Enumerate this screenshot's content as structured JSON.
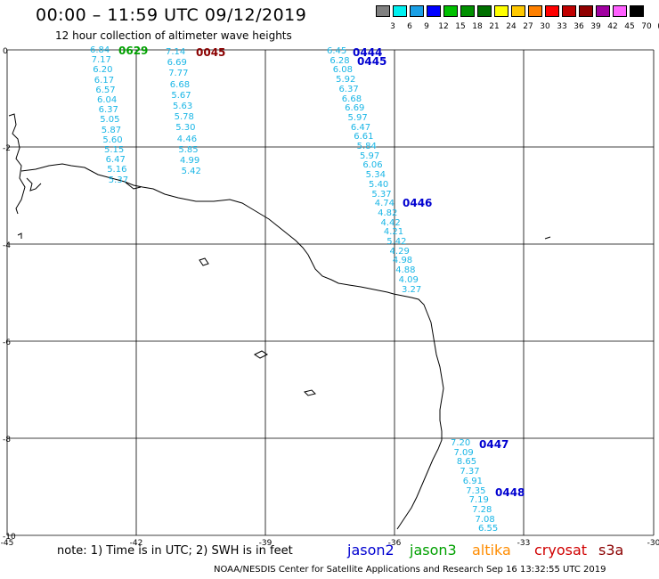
{
  "title": "00:00 – 11:59 UTC 09/12/2019",
  "subtitle": "12 hour collection of altimeter wave heights",
  "legend": {
    "labels": [
      "3",
      "6",
      "9",
      "12",
      "15",
      "18",
      "21",
      "24",
      "27",
      "30",
      "33",
      "36",
      "39",
      "42",
      "45",
      "70",
      "(ft)"
    ],
    "colors": [
      "#808080",
      "#00f0f0",
      "#1aa0e6",
      "#0000ff",
      "#00c000",
      "#009000",
      "#007000",
      "#ffff00",
      "#ffc800",
      "#ff8000",
      "#ff0000",
      "#c00000",
      "#900000",
      "#a000a0",
      "#ff60ff",
      "#000000"
    ]
  },
  "axes": {
    "x_ticks": [
      "-45",
      "-42",
      "-39",
      "-36",
      "-33",
      "-30"
    ],
    "y_ticks": [
      "0",
      "-2",
      "-4",
      "-6",
      "-8",
      "-10"
    ]
  },
  "passes": [
    {
      "id": "0629",
      "color": "#00a000"
    },
    {
      "id": "0045",
      "color": "#8b0000"
    },
    {
      "id": "0444",
      "color": "#0000d0"
    },
    {
      "id": "0445",
      "color": "#0000d0"
    },
    {
      "id": "0446",
      "color": "#0000d0"
    },
    {
      "id": "0447",
      "color": "#0000d0"
    },
    {
      "id": "0448",
      "color": "#0000d0"
    }
  ],
  "tracks": [
    {
      "values": [
        "6.84",
        "7.17",
        "6.20",
        "6.17",
        "6.57",
        "6.04",
        "6.37",
        "5.05",
        "5.87",
        "5.60",
        "5.15",
        "6.47",
        "5.16",
        "5.37"
      ]
    },
    {
      "values": [
        "7.14",
        "6.69",
        "7.77",
        "6.68",
        "5.67",
        "5.63",
        "5.78",
        "5.30",
        "4.46",
        "5.85",
        "4.99",
        "5.42"
      ]
    },
    {
      "values": [
        "6.45",
        "6.28",
        "6.08",
        "5.92",
        "6.37",
        "6.68",
        "6.69",
        "5.97",
        "6.47",
        "6.61",
        "5.84",
        "5.97",
        "6.06",
        "5.34",
        "5.40",
        "5.37",
        "4.74",
        "4.82",
        "4.42",
        "4.21",
        "5.42",
        "4.29",
        "4.98",
        "4.88",
        "4.09",
        "3.27"
      ]
    },
    {
      "values": [
        "7.20",
        "7.09",
        "8.65",
        "7.37",
        "6.91",
        "7.35",
        "7.19",
        "7.28",
        "7.08",
        "6.55"
      ]
    }
  ],
  "note": "note: 1) Time is in UTC; 2) SWH is in feet",
  "satellites": [
    {
      "name": "jason2",
      "color": "#0000d0"
    },
    {
      "name": "jason3",
      "color": "#00a000"
    },
    {
      "name": "altika",
      "color": "#ff8c00"
    },
    {
      "name": "cryosat",
      "color": "#d00000"
    },
    {
      "name": "s3a",
      "color": "#8b0000"
    }
  ],
  "footer": "NOAA/NESDIS Center for Satellite Applications and Research    Sep 16 13:32:55 UTC 2019"
}
